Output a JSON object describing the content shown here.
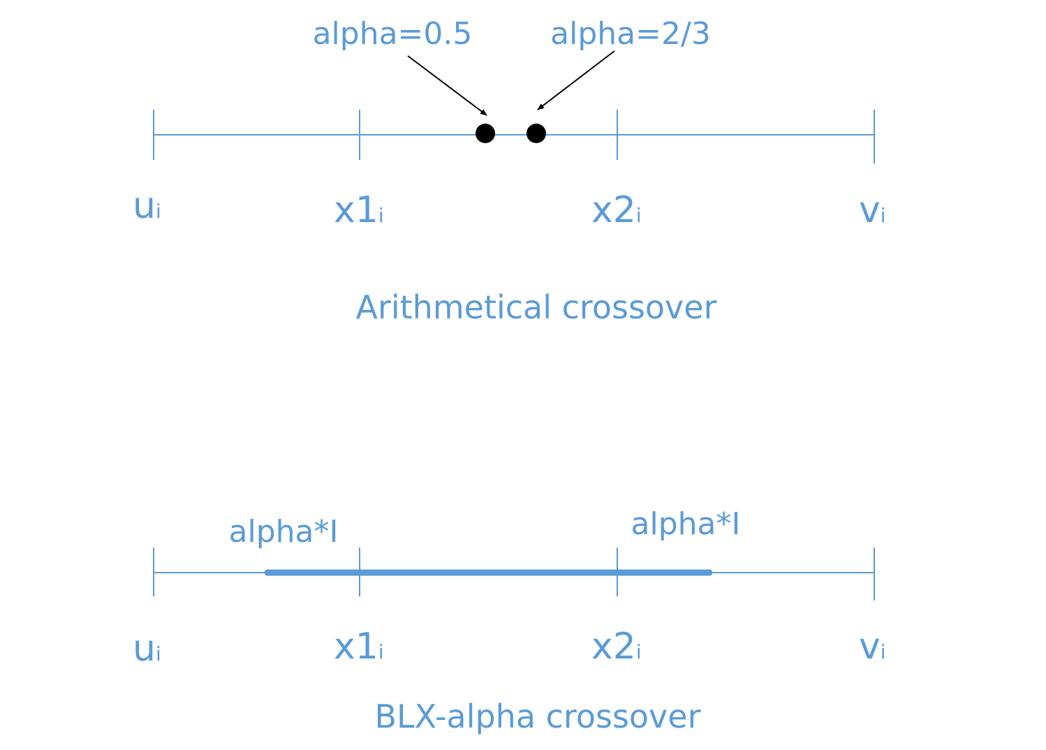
{
  "colors": {
    "accent": "#5b9bd5",
    "marker": "#000000",
    "background": "#ffffff"
  },
  "top_panel": {
    "title": "Arithmetical crossover",
    "annotations": [
      {
        "text": "alpha=0.5"
      },
      {
        "text": "alpha=2/3"
      }
    ],
    "tick_labels": [
      {
        "base": "u",
        "sub": "i"
      },
      {
        "base": "x1",
        "sub": "i"
      },
      {
        "base": "x2",
        "sub": "i"
      },
      {
        "base": "v",
        "sub": "i"
      }
    ]
  },
  "bottom_panel": {
    "title": "BLX-alpha crossover",
    "annotations": [
      {
        "text": "alpha*I"
      },
      {
        "text": "alpha*I"
      }
    ],
    "tick_labels": [
      {
        "base": "u",
        "sub": "i"
      },
      {
        "base": "x1",
        "sub": "i"
      },
      {
        "base": "x2",
        "sub": "i"
      },
      {
        "base": "v",
        "sub": "i"
      }
    ]
  }
}
